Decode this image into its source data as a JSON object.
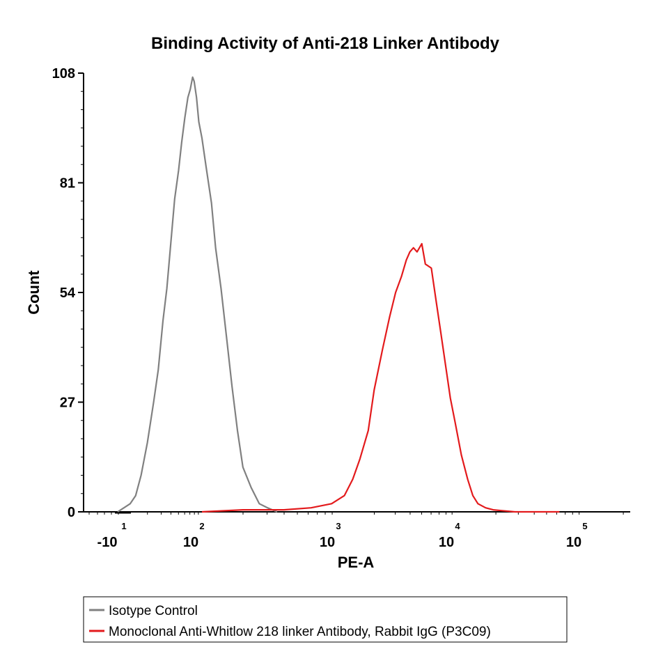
{
  "chart_data": {
    "type": "line",
    "title": "Binding Activity of Anti-218 Linker Antibody",
    "xlabel": "PE-A",
    "ylabel": "Count",
    "x_scale": "biexponential (log decades)",
    "x_ticks": [
      {
        "value": -10,
        "base": "-10",
        "exp": "1"
      },
      {
        "value": 100,
        "base": "10",
        "exp": "2"
      },
      {
        "value": 1000,
        "base": "10",
        "exp": "3"
      },
      {
        "value": 10000,
        "base": "10",
        "exp": "4"
      },
      {
        "value": 100000,
        "base": "10",
        "exp": "5"
      }
    ],
    "y_ticks": [
      "0",
      "27",
      "54",
      "81",
      "108"
    ],
    "ylim": [
      0,
      108
    ],
    "grid": false,
    "legend_position": "bottom-left",
    "series": [
      {
        "name": "Isotype Control",
        "color": "#808080",
        "x_log10": [
          0.92,
          1.0,
          1.08,
          1.15,
          1.22,
          1.3,
          1.38,
          1.44,
          1.5,
          1.55,
          1.6,
          1.65,
          1.7,
          1.74,
          1.78,
          1.82,
          1.85,
          1.88,
          1.9,
          1.93,
          1.96,
          2.0,
          2.03,
          2.07,
          2.1,
          2.14,
          2.18,
          2.22,
          2.26,
          2.3,
          2.36,
          2.42,
          2.48,
          2.55
        ],
        "y": [
          0,
          1,
          2,
          4,
          9,
          17,
          27,
          35,
          47,
          55,
          66,
          77,
          84,
          91,
          97,
          102,
          104,
          107,
          106,
          102,
          96,
          92,
          85,
          76,
          65,
          55,
          43,
          31,
          20,
          11,
          6,
          2,
          1,
          0
        ]
      },
      {
        "name": "Monoclonal Anti-Whitlow 218 linker Antibody, Rabbit IgG (P3C09)",
        "color": "#e31a1c",
        "x_log10": [
          2.0,
          2.3,
          2.6,
          2.8,
          2.95,
          3.05,
          3.12,
          3.18,
          3.25,
          3.3,
          3.37,
          3.43,
          3.48,
          3.53,
          3.57,
          3.6,
          3.63,
          3.66,
          3.7,
          3.73,
          3.78,
          3.82,
          3.86,
          3.9,
          3.94,
          3.98,
          4.03,
          4.08,
          4.12,
          4.16,
          4.22,
          4.28,
          4.35,
          4.45,
          4.6,
          4.8
        ],
        "y": [
          0,
          0.5,
          0.5,
          1,
          2,
          4,
          8,
          13,
          20,
          30,
          40,
          48,
          54,
          58,
          62,
          64,
          65,
          64,
          66,
          61,
          60,
          52,
          44,
          36,
          28,
          22,
          14,
          8,
          4,
          2,
          1,
          0.5,
          0.3,
          0,
          0,
          0
        ]
      }
    ]
  }
}
